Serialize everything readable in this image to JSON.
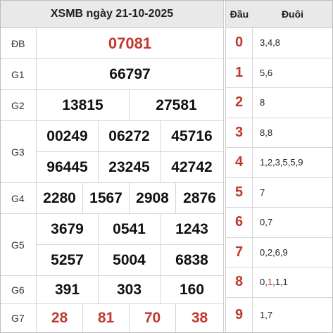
{
  "title": "XSMB ngày 21-10-2025",
  "prizes": {
    "db": {
      "label": "ĐB",
      "values": [
        "07081"
      ]
    },
    "g1": {
      "label": "G1",
      "values": [
        "66797"
      ]
    },
    "g2": {
      "label": "G2",
      "values": [
        "13815",
        "27581"
      ]
    },
    "g3": {
      "label": "G3",
      "values": [
        "00249",
        "06272",
        "45716",
        "96445",
        "23245",
        "42742"
      ]
    },
    "g4": {
      "label": "G4",
      "values": [
        "2280",
        "1567",
        "2908",
        "2876"
      ]
    },
    "g5": {
      "label": "G5",
      "values": [
        "3679",
        "0541",
        "1243",
        "5257",
        "5004",
        "6838"
      ]
    },
    "g6": {
      "label": "G6",
      "values": [
        "391",
        "303",
        "160"
      ]
    },
    "g7": {
      "label": "G7",
      "values": [
        "28",
        "81",
        "70",
        "38"
      ]
    }
  },
  "loto": {
    "head_label": "Đầu",
    "tail_label": "Đuôi",
    "rows": [
      {
        "dau": "0",
        "duoi": "3,4,8"
      },
      {
        "dau": "1",
        "duoi": "5,6"
      },
      {
        "dau": "2",
        "duoi": "8"
      },
      {
        "dau": "3",
        "duoi": "8,8"
      },
      {
        "dau": "4",
        "duoi": "1,2,3,5,5,9"
      },
      {
        "dau": "5",
        "duoi": "7"
      },
      {
        "dau": "6",
        "duoi": "0,7"
      },
      {
        "dau": "7",
        "duoi": "0,2,6,9"
      },
      {
        "dau": "8",
        "duoi_parts": [
          "0,",
          "1",
          ",1,1"
        ]
      },
      {
        "dau": "9",
        "duoi": "1,7"
      }
    ]
  },
  "colors": {
    "accent_red": "#c0392b",
    "header_bg": "#e9e9e9"
  }
}
